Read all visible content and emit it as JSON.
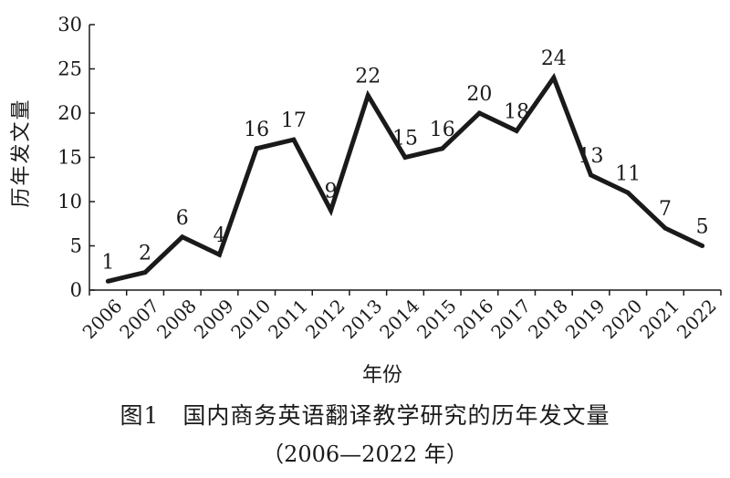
{
  "chart_data": {
    "type": "line",
    "x": [
      "2006",
      "2007",
      "2008",
      "2009",
      "2010",
      "2011",
      "2012",
      "2013",
      "2014",
      "2015",
      "2016",
      "2017",
      "2018",
      "2019",
      "2020",
      "2021",
      "2022"
    ],
    "series": [
      {
        "values": [
          1,
          2,
          6,
          4,
          16,
          17,
          9,
          22,
          15,
          16,
          20,
          18,
          24,
          13,
          11,
          7,
          5
        ]
      }
    ],
    "data_labels": [
      "1",
      "2",
      "6",
      "4",
      "16",
      "17",
      "9",
      "22",
      "15",
      "16",
      "20",
      "18",
      "24",
      "13",
      "11",
      "7",
      "5"
    ],
    "y_ticks": [
      "0",
      "5",
      "10",
      "15",
      "20",
      "25",
      "30"
    ],
    "ylim": [
      0,
      30
    ],
    "xlabel": "年份",
    "ylabel": "历年发文量",
    "grid": false,
    "line_color": "#1a1a1a"
  },
  "caption": {
    "title": "图1　国内商务英语翻译教学研究的历年发文量",
    "subtitle": "（2006—2022 年）"
  }
}
